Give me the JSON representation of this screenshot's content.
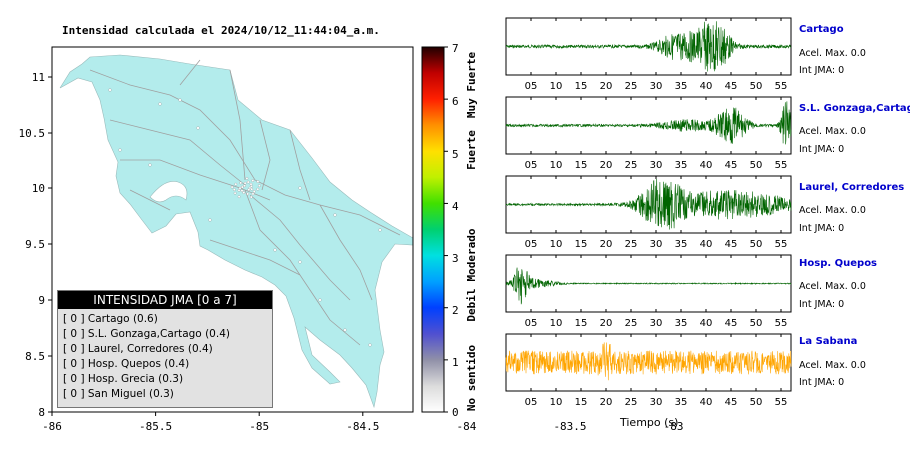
{
  "map": {
    "title": "Intensidad calculada el 2024/10/12_11:44:04_a.m.",
    "x_ticks": [
      "-86",
      "-85.5",
      "-85",
      "-84.5",
      "-84",
      "-83.5",
      "-83"
    ],
    "y_ticks": [
      "11",
      "10.5",
      "10",
      "9.5",
      "9",
      "8.5",
      "8"
    ],
    "land_color": "#b3ecec",
    "road_color": "#a0a0a0"
  },
  "legend": {
    "header": "INTENSIDAD JMA [0 a 7]",
    "items": [
      {
        "label": "[ 0 ]  Cartago (0.6)"
      },
      {
        "label": "[ 0 ]  S.L. Gonzaga,Cartago (0.4)"
      },
      {
        "label": "[ 0 ]  Laurel, Corredores (0.4)"
      },
      {
        "label": "[ 0 ]  Hosp. Quepos (0.4)"
      },
      {
        "label": "[ 0 ]  Hosp. Grecia (0.3)"
      },
      {
        "label": "[ 0 ]  San Miguel (0.3)"
      }
    ]
  },
  "colorbar": {
    "ticks": [
      "0",
      "1",
      "2",
      "3",
      "4",
      "5",
      "6",
      "7"
    ],
    "labels": [
      "No sentido",
      "Debil",
      "Moderado",
      "Fuerte",
      "Muy Fuerte"
    ]
  },
  "chart_data": [
    {
      "type": "line",
      "title": "Cartago",
      "series": [
        {
          "name": "Cartago",
          "color": "#006400"
        }
      ],
      "x_ticks": [
        "05",
        "10",
        "15",
        "20",
        "25",
        "30",
        "35",
        "40",
        "45",
        "50",
        "55"
      ],
      "xlim": [
        0,
        57
      ],
      "annotations": [
        "Acel. Max. 0.0",
        "Int JMA: 0"
      ]
    },
    {
      "type": "line",
      "title": "S.L. Gonzaga,Cartago",
      "series": [
        {
          "name": "S.L. Gonzaga,Cartago",
          "color": "#006400"
        }
      ],
      "x_ticks": [
        "05",
        "10",
        "15",
        "20",
        "25",
        "30",
        "35",
        "40",
        "45",
        "50",
        "55"
      ],
      "xlim": [
        0,
        57
      ],
      "annotations": [
        "Acel. Max. 0.0",
        "Int JMA: 0"
      ]
    },
    {
      "type": "line",
      "title": "Laurel, Corredores",
      "series": [
        {
          "name": "Laurel, Corredores",
          "color": "#006400"
        }
      ],
      "x_ticks": [
        "05",
        "10",
        "15",
        "20",
        "25",
        "30",
        "35",
        "40",
        "45",
        "50",
        "55"
      ],
      "xlim": [
        0,
        57
      ],
      "annotations": [
        "Acel. Max. 0.0",
        "Int JMA: 0"
      ]
    },
    {
      "type": "line",
      "title": "Hosp. Quepos",
      "series": [
        {
          "name": "Hosp. Quepos",
          "color": "#006400"
        }
      ],
      "x_ticks": [
        "05",
        "10",
        "15",
        "20",
        "25",
        "30",
        "35",
        "40",
        "45",
        "50",
        "55"
      ],
      "xlim": [
        0,
        57
      ],
      "annotations": [
        "Acel. Max. 0.0",
        "Int JMA: 0"
      ]
    },
    {
      "type": "line",
      "title": "La Sabana",
      "series": [
        {
          "name": "La Sabana",
          "color": "#ffa500"
        }
      ],
      "x_ticks": [
        "05",
        "10",
        "15",
        "20",
        "25",
        "30",
        "35",
        "40",
        "45",
        "50",
        "55"
      ],
      "xlim": [
        0,
        57
      ],
      "xlabel": "Tiempo (s)",
      "annotations": [
        "Acel. Max. 0.0",
        "Int JMA: 0"
      ]
    }
  ]
}
